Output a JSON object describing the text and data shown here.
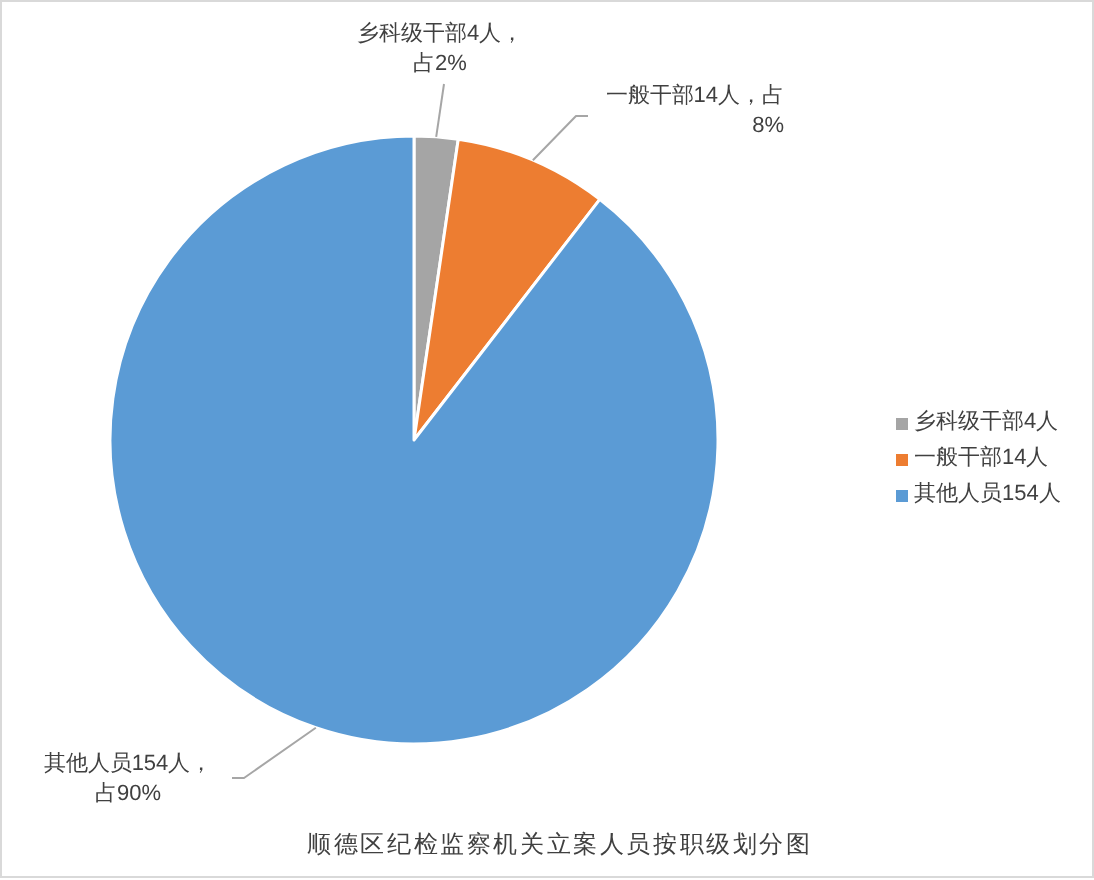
{
  "chart_data": {
    "type": "pie",
    "title": "顺德区纪检监察机关立案人员按职级划分图",
    "categories": [
      "乡科级干部4人",
      "一般干部14人",
      "其他人员154人"
    ],
    "values": [
      4,
      14,
      154
    ],
    "colors": [
      "#a5a5a5",
      "#ed7d31",
      "#5b9bd5"
    ],
    "value_labels": [
      "乡科级干部4人，占2%",
      "一般干部14人，占8%",
      "其他人员154人，占90%"
    ],
    "legend": "right"
  }
}
